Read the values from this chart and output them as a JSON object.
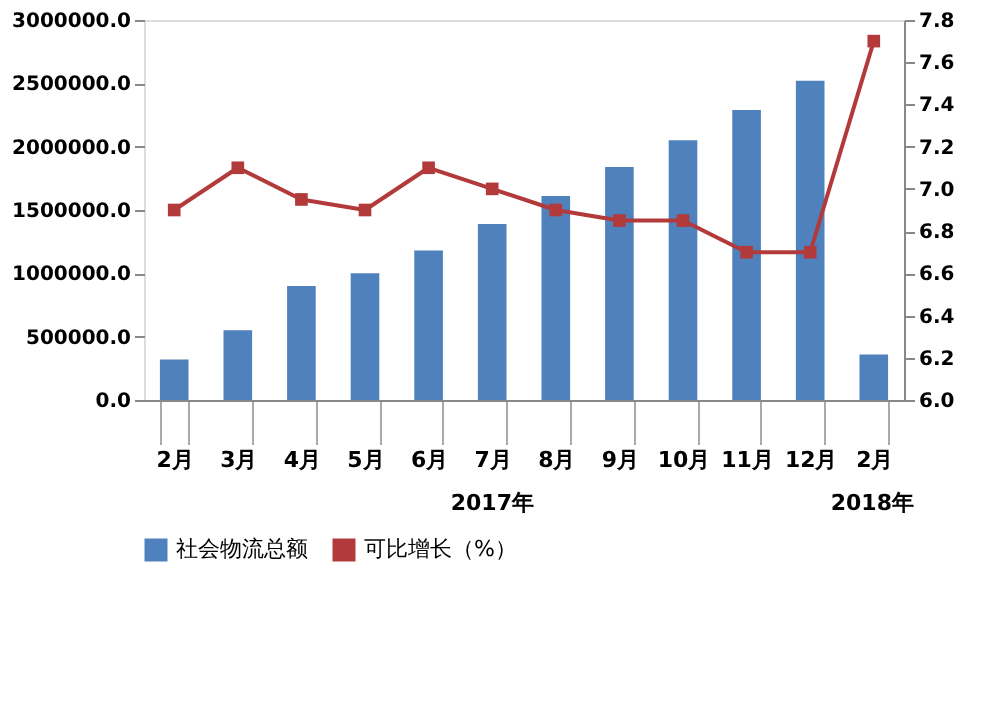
{
  "chart_data": {
    "type": "bar",
    "categories": [
      "2月",
      "3月",
      "4月",
      "5月",
      "6月",
      "7月",
      "8月",
      "9月",
      "10月",
      "11月",
      "12月",
      "2月"
    ],
    "series": [
      {
        "name": "社会物流总额",
        "color": "#4f81bd",
        "values": [
          320000,
          550000,
          900000,
          1000000,
          1180000,
          1390000,
          1610000,
          1840000,
          2050000,
          2290000,
          2520000,
          360000
        ]
      },
      {
        "name": "可比增长（%）",
        "type": "line",
        "axis": "y2",
        "color": "#b23a3a",
        "marker": "square",
        "values": [
          6.9,
          7.1,
          6.95,
          6.9,
          7.1,
          7.0,
          6.9,
          6.85,
          6.85,
          6.7,
          6.7,
          7.7
        ]
      }
    ],
    "ylim": [
      0,
      3000000
    ],
    "yticks": [
      {
        "value": 0,
        "label": "0.0"
      },
      {
        "value": 500000,
        "label": "500000.0"
      },
      {
        "value": 1000000,
        "label": "1000000.0"
      },
      {
        "value": 1500000,
        "label": "1500000.0"
      },
      {
        "value": 2000000,
        "label": "2000000.0"
      },
      {
        "value": 2500000,
        "label": "2500000.0"
      },
      {
        "value": 3000000,
        "label": "3000000.0"
      }
    ],
    "y2lim": [
      6.0,
      7.8
    ],
    "y2ticks": [
      {
        "value": 6.0,
        "label": "6.0"
      },
      {
        "value": 6.2,
        "label": "6.2"
      },
      {
        "value": 6.4,
        "label": "6.4"
      },
      {
        "value": 6.6,
        "label": "6.6"
      },
      {
        "value": 6.8,
        "label": "6.8"
      },
      {
        "value": 7.0,
        "label": "7.0"
      },
      {
        "value": 7.2,
        "label": "7.2"
      },
      {
        "value": 7.4,
        "label": "7.4"
      },
      {
        "value": 7.6,
        "label": "7.6"
      },
      {
        "value": 7.8,
        "label": "7.8"
      }
    ],
    "annotations": [
      "2017年",
      "2018年"
    ],
    "grid": false,
    "legend": "bottom"
  }
}
